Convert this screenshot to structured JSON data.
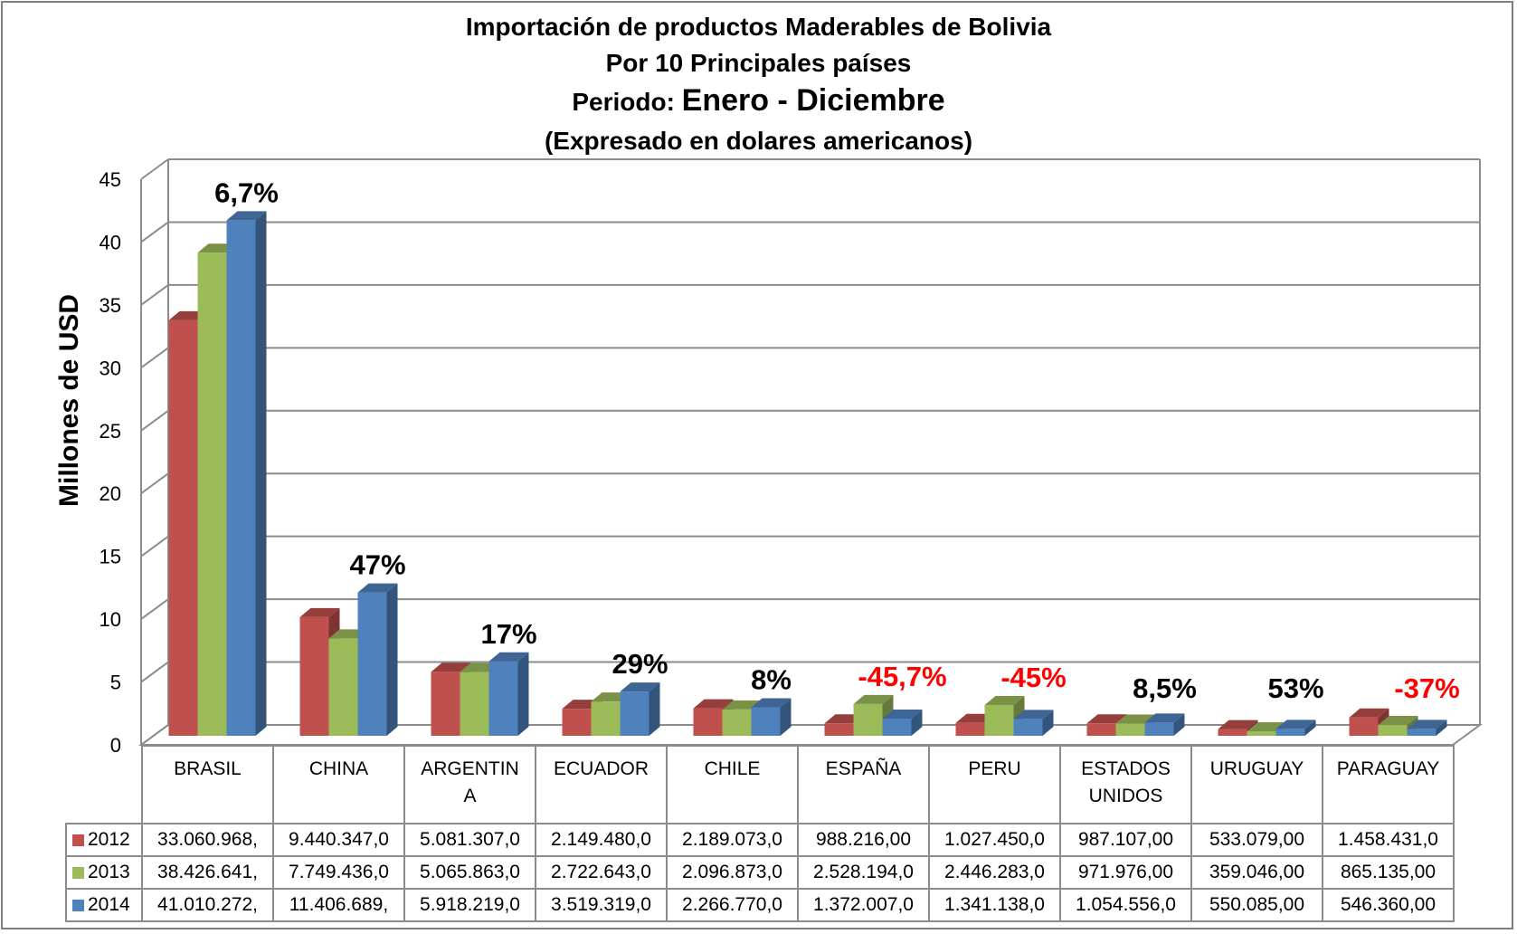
{
  "chart_data": {
    "type": "bar",
    "title_lines": [
      "Importación de productos Maderables de Bolivia",
      "Por 10 Principales países"
    ],
    "period_label": "Periodo:",
    "period_value": "Enero - Diciembre",
    "subtitle": "(Expresado en dolares americanos)",
    "ylabel": "Millones de USD",
    "xlabel": "",
    "ylim": [
      0,
      45
    ],
    "yticks": [
      "0",
      "5",
      "10",
      "15",
      "20",
      "25",
      "30",
      "35",
      "40",
      "45"
    ],
    "grid": true,
    "legend_placement": "data-table",
    "categories": [
      "BRASIL",
      "CHINA",
      "ARGENTINA",
      "ECUADOR",
      "CHILE",
      "ESPAÑA",
      "PERU",
      "ESTADOS UNIDOS",
      "URUGUAY",
      "PARAGUAY"
    ],
    "category_labels_display": [
      [
        "BRASIL"
      ],
      [
        "CHINA"
      ],
      [
        "ARGENTIN",
        "A"
      ],
      [
        "ECUADOR"
      ],
      [
        "CHILE"
      ],
      [
        "ESPAÑA"
      ],
      [
        "PERU"
      ],
      [
        "ESTADOS",
        "UNIDOS"
      ],
      [
        "URUGUAY"
      ],
      [
        "PARAGUAY"
      ]
    ],
    "series": [
      {
        "name": "2012",
        "color": "#c0504d",
        "values": [
          33.060968,
          9.440347,
          5.081307,
          2.14948,
          2.189073,
          0.988216,
          1.02745,
          0.987107,
          0.533079,
          1.458431
        ],
        "table_text": [
          "33.060.968,",
          "9.440.347,0",
          "5.081.307,0",
          "2.149.480,0",
          "2.189.073,0",
          "988.216,00",
          "1.027.450,0",
          "987.107,00",
          "533.079,00",
          "1.458.431,0"
        ]
      },
      {
        "name": "2013",
        "color": "#9bbb59",
        "values": [
          38.426641,
          7.749436,
          5.065863,
          2.722643,
          2.096873,
          2.528194,
          2.446283,
          0.971976,
          0.359046,
          0.865135
        ],
        "table_text": [
          "38.426.641,",
          "7.749.436,0",
          "5.065.863,0",
          "2.722.643,0",
          "2.096.873,0",
          "2.528.194,0",
          "2.446.283,0",
          "971.976,00",
          "359.046,00",
          "865.135,00"
        ]
      },
      {
        "name": "2014",
        "color": "#4f81bd",
        "values": [
          41.010272,
          11.406689,
          5.918219,
          3.519319,
          2.26677,
          1.372007,
          1.341138,
          1.054556,
          0.550085,
          0.54636
        ],
        "table_text": [
          "41.010.272,",
          "11.406.689,",
          "5.918.219,0",
          "3.519.319,0",
          "2.266.770,0",
          "1.372.007,0",
          "1.341.138,0",
          "1.054.556,0",
          "550.085,00",
          "546.360,00"
        ]
      }
    ],
    "annotations": [
      {
        "category": "BRASIL",
        "text": "6,7%",
        "color": "#000000"
      },
      {
        "category": "CHINA",
        "text": "47%",
        "color": "#000000"
      },
      {
        "category": "ARGENTINA",
        "text": "17%",
        "color": "#000000"
      },
      {
        "category": "ECUADOR",
        "text": "29%",
        "color": "#000000"
      },
      {
        "category": "CHILE",
        "text": "8%",
        "color": "#000000"
      },
      {
        "category": "ESPAÑA",
        "text": "-45,7%",
        "color": "#ff0000"
      },
      {
        "category": "PERU",
        "text": "-45%",
        "color": "#ff0000"
      },
      {
        "category": "ESTADOS UNIDOS",
        "text": "8,5%",
        "color": "#000000"
      },
      {
        "category": "URUGUAY",
        "text": "53%",
        "color": "#000000"
      },
      {
        "category": "PARAGUAY",
        "text": "-37%",
        "color": "#ff0000"
      }
    ]
  }
}
